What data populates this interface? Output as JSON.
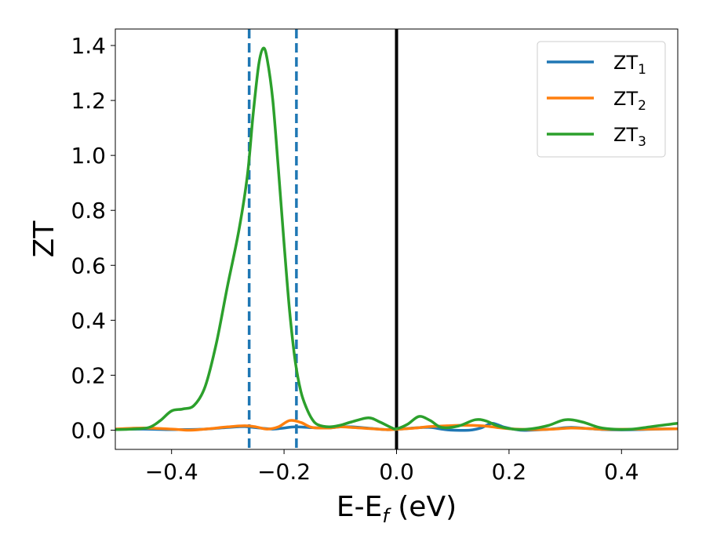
{
  "chart_data": {
    "type": "line",
    "xlabel_main": "E-E",
    "xlabel_sub": "f",
    "xlabel_unit": " (eV)",
    "ylabel": "ZT",
    "xlim": [
      -0.5,
      0.5
    ],
    "ylim": [
      -0.07,
      1.46
    ],
    "xticks": [
      {
        "value": -0.4,
        "label": "−0.4"
      },
      {
        "value": -0.2,
        "label": "−0.2"
      },
      {
        "value": 0.0,
        "label": "0.0"
      },
      {
        "value": 0.2,
        "label": "0.2"
      },
      {
        "value": 0.4,
        "label": "0.4"
      }
    ],
    "yticks": [
      {
        "value": 0.0,
        "label": "0.0"
      },
      {
        "value": 0.2,
        "label": "0.2"
      },
      {
        "value": 0.4,
        "label": "0.4"
      },
      {
        "value": 0.6,
        "label": "0.6"
      },
      {
        "value": 0.8,
        "label": "0.8"
      },
      {
        "value": 1.0,
        "label": "1.0"
      },
      {
        "value": 1.2,
        "label": "1.2"
      },
      {
        "value": 1.4,
        "label": "1.4"
      }
    ],
    "grid": false,
    "legend_position": "top-right",
    "series": [
      {
        "name_main": "ZT",
        "name_sub": "1",
        "color": "#1f77b4",
        "points": [
          [
            -0.5,
            0.003
          ],
          [
            -0.45,
            0.004
          ],
          [
            -0.4,
            0.002
          ],
          [
            -0.35,
            0.003
          ],
          [
            -0.3,
            0.01
          ],
          [
            -0.27,
            0.013
          ],
          [
            -0.25,
            0.009
          ],
          [
            -0.22,
            0.004
          ],
          [
            -0.2,
            0.008
          ],
          [
            -0.18,
            0.012
          ],
          [
            -0.15,
            0.009
          ],
          [
            -0.12,
            0.008
          ],
          [
            -0.1,
            0.012
          ],
          [
            -0.08,
            0.012
          ],
          [
            -0.05,
            0.007
          ],
          [
            -0.02,
            0.002
          ],
          [
            0.0,
            0.003
          ],
          [
            0.03,
            0.008
          ],
          [
            0.06,
            0.01
          ],
          [
            0.08,
            0.004
          ],
          [
            0.1,
            0.0
          ],
          [
            0.13,
            0.0
          ],
          [
            0.15,
            0.008
          ],
          [
            0.17,
            0.025
          ],
          [
            0.19,
            0.012
          ],
          [
            0.22,
            0.0
          ],
          [
            0.25,
            0.001
          ],
          [
            0.28,
            0.005
          ],
          [
            0.31,
            0.01
          ],
          [
            0.34,
            0.006
          ],
          [
            0.37,
            0.002
          ],
          [
            0.4,
            0.001
          ],
          [
            0.43,
            0.002
          ],
          [
            0.46,
            0.004
          ],
          [
            0.5,
            0.005
          ]
        ]
      },
      {
        "name_main": "ZT",
        "name_sub": "2",
        "color": "#ff7f0e",
        "points": [
          [
            -0.5,
            0.004
          ],
          [
            -0.45,
            0.008
          ],
          [
            -0.4,
            0.004
          ],
          [
            -0.37,
            0.0
          ],
          [
            -0.34,
            0.004
          ],
          [
            -0.3,
            0.012
          ],
          [
            -0.27,
            0.016
          ],
          [
            -0.25,
            0.012
          ],
          [
            -0.23,
            0.004
          ],
          [
            -0.21,
            0.012
          ],
          [
            -0.19,
            0.035
          ],
          [
            -0.17,
            0.028
          ],
          [
            -0.15,
            0.01
          ],
          [
            -0.12,
            0.008
          ],
          [
            -0.1,
            0.012
          ],
          [
            -0.08,
            0.01
          ],
          [
            -0.05,
            0.006
          ],
          [
            -0.02,
            0.002
          ],
          [
            0.0,
            0.003
          ],
          [
            0.03,
            0.007
          ],
          [
            0.06,
            0.013
          ],
          [
            0.09,
            0.016
          ],
          [
            0.12,
            0.018
          ],
          [
            0.15,
            0.016
          ],
          [
            0.17,
            0.012
          ],
          [
            0.19,
            0.007
          ],
          [
            0.22,
            0.003
          ],
          [
            0.25,
            0.002
          ],
          [
            0.28,
            0.004
          ],
          [
            0.31,
            0.008
          ],
          [
            0.34,
            0.006
          ],
          [
            0.37,
            0.003
          ],
          [
            0.4,
            0.003
          ],
          [
            0.45,
            0.004
          ],
          [
            0.5,
            0.005
          ]
        ]
      },
      {
        "name_main": "ZT",
        "name_sub": "3",
        "color": "#2ca02c",
        "points": [
          [
            -0.5,
            0.002
          ],
          [
            -0.47,
            0.004
          ],
          [
            -0.44,
            0.01
          ],
          [
            -0.42,
            0.035
          ],
          [
            -0.4,
            0.07
          ],
          [
            -0.38,
            0.077
          ],
          [
            -0.36,
            0.09
          ],
          [
            -0.34,
            0.16
          ],
          [
            -0.32,
            0.32
          ],
          [
            -0.3,
            0.53
          ],
          [
            -0.28,
            0.73
          ],
          [
            -0.265,
            0.93
          ],
          [
            -0.255,
            1.15
          ],
          [
            -0.245,
            1.33
          ],
          [
            -0.237,
            1.39
          ],
          [
            -0.23,
            1.35
          ],
          [
            -0.22,
            1.2
          ],
          [
            -0.21,
            0.95
          ],
          [
            -0.2,
            0.68
          ],
          [
            -0.19,
            0.43
          ],
          [
            -0.18,
            0.25
          ],
          [
            -0.17,
            0.14
          ],
          [
            -0.16,
            0.08
          ],
          [
            -0.15,
            0.04
          ],
          [
            -0.14,
            0.02
          ],
          [
            -0.12,
            0.012
          ],
          [
            -0.1,
            0.018
          ],
          [
            -0.08,
            0.03
          ],
          [
            -0.05,
            0.045
          ],
          [
            -0.03,
            0.03
          ],
          [
            -0.01,
            0.01
          ],
          [
            0.0,
            0.005
          ],
          [
            0.02,
            0.022
          ],
          [
            0.04,
            0.05
          ],
          [
            0.06,
            0.035
          ],
          [
            0.08,
            0.01
          ],
          [
            0.11,
            0.015
          ],
          [
            0.14,
            0.038
          ],
          [
            0.16,
            0.033
          ],
          [
            0.18,
            0.015
          ],
          [
            0.21,
            0.003
          ],
          [
            0.24,
            0.005
          ],
          [
            0.27,
            0.017
          ],
          [
            0.3,
            0.038
          ],
          [
            0.33,
            0.03
          ],
          [
            0.36,
            0.01
          ],
          [
            0.39,
            0.003
          ],
          [
            0.42,
            0.004
          ],
          [
            0.45,
            0.012
          ],
          [
            0.48,
            0.02
          ],
          [
            0.5,
            0.025
          ]
        ]
      }
    ],
    "vlines": [
      {
        "x": -0.262,
        "color": "#1f77b4",
        "style": "dashed"
      },
      {
        "x": -0.178,
        "color": "#1f77b4",
        "style": "dashed"
      },
      {
        "x": 0.0,
        "color": "#000000",
        "style": "solid"
      }
    ]
  }
}
